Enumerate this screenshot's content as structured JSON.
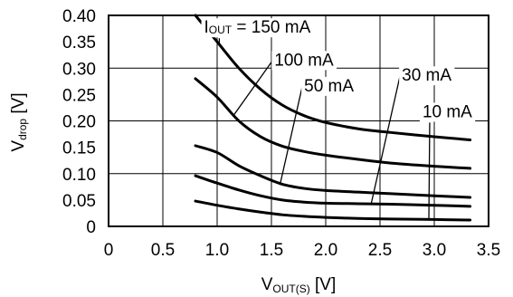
{
  "chart_data": {
    "type": "line",
    "xlabel": {
      "main": "V",
      "sub": "OUT(S)",
      "unit": " [V]"
    },
    "ylabel": {
      "main": "V",
      "sub": "drop",
      "unit": " [V]"
    },
    "xlim": [
      0,
      3.5
    ],
    "ylim": [
      0,
      0.4
    ],
    "x_ticks": [
      "0",
      "0.5",
      "1.0",
      "1.5",
      "2.0",
      "2.5",
      "3.0",
      "3.5"
    ],
    "y_ticks": [
      "0",
      "0.05",
      "0.10",
      "0.15",
      "0.20",
      "0.25",
      "0.30",
      "0.35",
      "0.40"
    ],
    "grid": true,
    "series": [
      {
        "name": "I_OUT = 150 mA",
        "label_main": "I",
        "label_sub": "OUT",
        "label_rest": " = 150 mA",
        "points": [
          [
            0.8,
            0.4
          ],
          [
            1.0,
            0.35
          ],
          [
            1.2,
            0.3
          ],
          [
            1.4,
            0.26
          ],
          [
            1.6,
            0.23
          ],
          [
            1.8,
            0.21
          ],
          [
            2.0,
            0.197
          ],
          [
            2.3,
            0.185
          ],
          [
            2.6,
            0.178
          ],
          [
            3.0,
            0.17
          ],
          [
            3.33,
            0.164
          ]
        ]
      },
      {
        "name": "100 mA",
        "label_main": "100 mA",
        "points": [
          [
            0.8,
            0.28
          ],
          [
            1.0,
            0.245
          ],
          [
            1.2,
            0.2
          ],
          [
            1.4,
            0.17
          ],
          [
            1.6,
            0.152
          ],
          [
            1.8,
            0.142
          ],
          [
            2.0,
            0.135
          ],
          [
            2.3,
            0.127
          ],
          [
            2.6,
            0.12
          ],
          [
            3.0,
            0.114
          ],
          [
            3.33,
            0.11
          ]
        ]
      },
      {
        "name": "50 mA",
        "label_main": "50 mA",
        "points": [
          [
            0.8,
            0.153
          ],
          [
            1.0,
            0.14
          ],
          [
            1.2,
            0.115
          ],
          [
            1.4,
            0.096
          ],
          [
            1.6,
            0.08
          ],
          [
            1.8,
            0.072
          ],
          [
            2.0,
            0.068
          ],
          [
            2.3,
            0.065
          ],
          [
            2.6,
            0.062
          ],
          [
            3.0,
            0.058
          ],
          [
            3.33,
            0.055
          ]
        ]
      },
      {
        "name": "30 mA",
        "label_main": "30 mA",
        "points": [
          [
            0.8,
            0.096
          ],
          [
            1.0,
            0.082
          ],
          [
            1.2,
            0.069
          ],
          [
            1.4,
            0.058
          ],
          [
            1.6,
            0.05
          ],
          [
            1.8,
            0.046
          ],
          [
            2.0,
            0.044
          ],
          [
            2.3,
            0.043
          ],
          [
            2.6,
            0.042
          ],
          [
            3.0,
            0.04
          ],
          [
            3.33,
            0.038
          ]
        ]
      },
      {
        "name": "10 mA",
        "label_main": "10 mA",
        "points": [
          [
            0.8,
            0.048
          ],
          [
            1.0,
            0.04
          ],
          [
            1.2,
            0.033
          ],
          [
            1.4,
            0.027
          ],
          [
            1.6,
            0.022
          ],
          [
            1.8,
            0.019
          ],
          [
            2.0,
            0.017
          ],
          [
            2.3,
            0.015
          ],
          [
            2.6,
            0.014
          ],
          [
            3.0,
            0.013
          ],
          [
            3.33,
            0.012
          ]
        ]
      }
    ],
    "annotations": [
      {
        "series": 0,
        "label_at": [
          1.37,
          0.367
        ],
        "pointer_to": [
          1.02,
          0.345
        ]
      },
      {
        "series": 1,
        "label_at": [
          1.8,
          0.305
        ],
        "pointer_to": [
          1.15,
          0.21
        ]
      },
      {
        "series": 2,
        "label_at": [
          2.03,
          0.256
        ],
        "pointer_to": [
          1.58,
          0.08
        ]
      },
      {
        "series": 3,
        "label_at": [
          2.93,
          0.276
        ],
        "pointer_to": [
          2.42,
          0.044
        ]
      },
      {
        "series": 4,
        "label_at": [
          3.12,
          0.207
        ],
        "pointer_to": [
          2.95,
          0.013
        ]
      }
    ]
  }
}
